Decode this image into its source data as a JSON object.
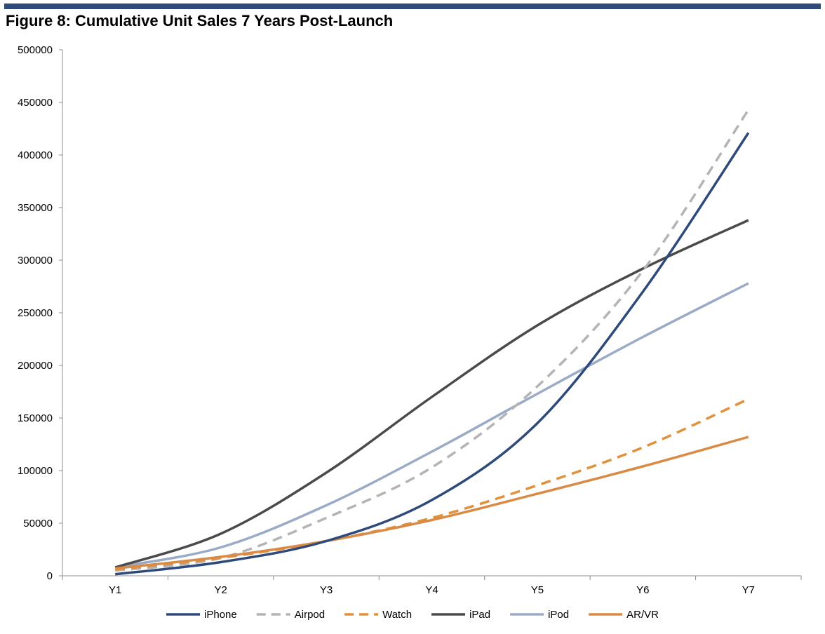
{
  "figure": {
    "title": "Figure 8: Cumulative Unit Sales 7 Years Post-Launch"
  },
  "colors": {
    "rule": "#2e4a7a",
    "iPhone": "#2e4a7a",
    "Airpod": "#b4b4b4",
    "Watch": "#e0913c",
    "iPad": "#4a4a4a",
    "iPod": "#9aabc7",
    "AR/VR": "#d98a45"
  },
  "chart_data": {
    "type": "line",
    "title": "Figure 8: Cumulative Unit Sales 7 Years Post-Launch",
    "xlabel": "",
    "ylabel": "",
    "categories": [
      "Y1",
      "Y2",
      "Y3",
      "Y4",
      "Y5",
      "Y6",
      "Y7"
    ],
    "ylim": [
      0,
      500000
    ],
    "yticks": [
      "0",
      "50000",
      "100000",
      "150000",
      "200000",
      "250000",
      "300000",
      "350000",
      "400000",
      "450000",
      "500000"
    ],
    "grid": false,
    "legend": "bottom",
    "series": [
      {
        "name": "iPhone",
        "style": "solid",
        "color": "#2e4a7a",
        "values": [
          1500,
          13000,
          33000,
          72000,
          145000,
          270000,
          421000
        ]
      },
      {
        "name": "Airpod",
        "style": "dashed",
        "color": "#b4b4b4",
        "values": [
          5000,
          17000,
          55000,
          103000,
          180000,
          290000,
          443000
        ]
      },
      {
        "name": "Watch",
        "style": "dashed",
        "color": "#e0913c",
        "values": [
          6000,
          17000,
          33000,
          55000,
          86000,
          122000,
          168000
        ]
      },
      {
        "name": "iPad",
        "style": "solid",
        "color": "#4a4a4a",
        "values": [
          8000,
          40000,
          98000,
          170000,
          238000,
          292000,
          338000
        ]
      },
      {
        "name": "iPod",
        "style": "solid",
        "color": "#9aabc7",
        "values": [
          8000,
          27000,
          67000,
          118000,
          173000,
          227000,
          278000
        ]
      },
      {
        "name": "AR/VR",
        "style": "solid",
        "color": "#d98a45",
        "values": [
          7000,
          18000,
          33000,
          53000,
          78000,
          104000,
          132000
        ]
      }
    ]
  }
}
